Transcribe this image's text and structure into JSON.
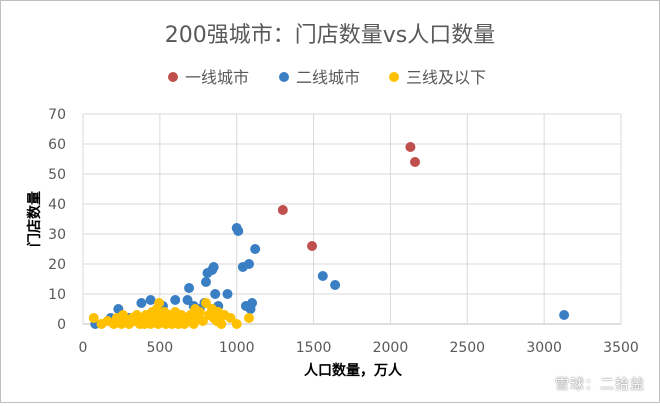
{
  "chart_data": {
    "type": "scatter",
    "title": "200强城市：门店数量vs人口数量",
    "xlabel": "人口数量，万人",
    "ylabel": "门店数量",
    "xlim": [
      0,
      3500
    ],
    "ylim": [
      0,
      70
    ],
    "x_ticks": [
      "0",
      "500",
      "1000",
      "1500",
      "2000",
      "2500",
      "3000",
      "3500"
    ],
    "y_ticks": [
      "0",
      "10",
      "20",
      "30",
      "40",
      "50",
      "60",
      "70"
    ],
    "grid": true,
    "legend_position": "top",
    "series": [
      {
        "name": "一线城市",
        "color": "#C0504D",
        "points": [
          [
            1300,
            38
          ],
          [
            1490,
            26
          ],
          [
            2130,
            59
          ],
          [
            2160,
            54
          ]
        ]
      },
      {
        "name": "二线城市",
        "color": "#3A7EC4",
        "points": [
          [
            80,
            0
          ],
          [
            180,
            2
          ],
          [
            230,
            5
          ],
          [
            230,
            1
          ],
          [
            300,
            2
          ],
          [
            360,
            1
          ],
          [
            380,
            7
          ],
          [
            440,
            8
          ],
          [
            470,
            3
          ],
          [
            520,
            6
          ],
          [
            560,
            2
          ],
          [
            600,
            8
          ],
          [
            650,
            2
          ],
          [
            680,
            8
          ],
          [
            690,
            12
          ],
          [
            720,
            6
          ],
          [
            760,
            5
          ],
          [
            790,
            7
          ],
          [
            800,
            14
          ],
          [
            810,
            17
          ],
          [
            840,
            18
          ],
          [
            850,
            19
          ],
          [
            860,
            10
          ],
          [
            880,
            6
          ],
          [
            940,
            10
          ],
          [
            1000,
            32
          ],
          [
            1010,
            31
          ],
          [
            1040,
            19
          ],
          [
            1060,
            6
          ],
          [
            1080,
            20
          ],
          [
            1090,
            5
          ],
          [
            1100,
            7
          ],
          [
            1120,
            25
          ],
          [
            1560,
            16
          ],
          [
            1640,
            13
          ],
          [
            3130,
            3
          ]
        ]
      },
      {
        "name": "三线及以下",
        "color": "#FFC000",
        "points": [
          [
            70,
            2
          ],
          [
            120,
            0
          ],
          [
            160,
            1
          ],
          [
            200,
            0
          ],
          [
            220,
            2
          ],
          [
            250,
            0
          ],
          [
            260,
            3
          ],
          [
            280,
            1
          ],
          [
            300,
            0
          ],
          [
            320,
            2
          ],
          [
            340,
            1
          ],
          [
            350,
            3
          ],
          [
            370,
            0
          ],
          [
            380,
            2
          ],
          [
            390,
            1
          ],
          [
            400,
            0
          ],
          [
            410,
            3
          ],
          [
            420,
            2
          ],
          [
            430,
            1
          ],
          [
            440,
            0
          ],
          [
            450,
            4
          ],
          [
            460,
            2
          ],
          [
            470,
            1
          ],
          [
            480,
            5
          ],
          [
            490,
            0
          ],
          [
            495,
            7
          ],
          [
            500,
            3
          ],
          [
            510,
            2
          ],
          [
            520,
            1
          ],
          [
            530,
            4
          ],
          [
            540,
            0
          ],
          [
            550,
            2
          ],
          [
            560,
            3
          ],
          [
            570,
            1
          ],
          [
            580,
            0
          ],
          [
            590,
            2
          ],
          [
            600,
            4
          ],
          [
            610,
            1
          ],
          [
            620,
            0
          ],
          [
            630,
            2
          ],
          [
            640,
            3
          ],
          [
            650,
            1
          ],
          [
            660,
            0
          ],
          [
            670,
            2
          ],
          [
            690,
            1
          ],
          [
            700,
            3
          ],
          [
            720,
            0
          ],
          [
            730,
            5
          ],
          [
            750,
            2
          ],
          [
            760,
            4
          ],
          [
            780,
            1
          ],
          [
            800,
            7
          ],
          [
            820,
            3
          ],
          [
            840,
            5
          ],
          [
            850,
            2
          ],
          [
            870,
            1
          ],
          [
            880,
            4
          ],
          [
            900,
            0
          ],
          [
            920,
            3
          ],
          [
            960,
            2
          ],
          [
            1000,
            0
          ],
          [
            1080,
            2
          ]
        ]
      }
    ]
  },
  "watermark": "雪球：二拾益"
}
